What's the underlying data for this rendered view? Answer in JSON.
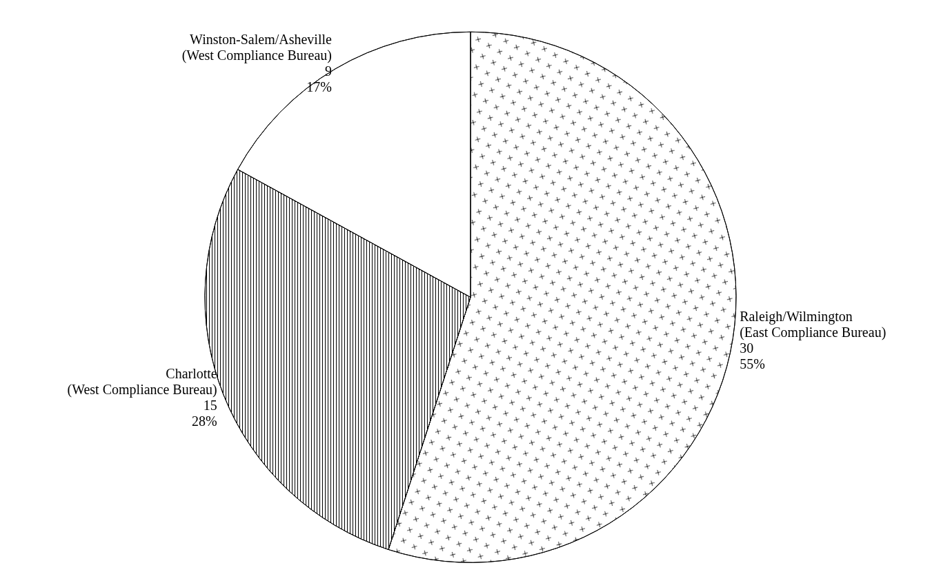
{
  "chart_data": {
    "type": "pie",
    "categories": [
      "Raleigh/Wilmington\n(East Compliance Bureau)",
      "Charlotte\n(West Compliance Bureau)",
      "Winston-Salem/Asheville\n(West Compliance Bureau)"
    ],
    "values": [
      55,
      28,
      17
    ],
    "colors": [
      "#ffffff",
      "#ffffff",
      "#ffffff"
    ],
    "value_labels": [
      "30\n55%",
      "15\n28%",
      "9\n17%"
    ],
    "legend": false
  }
}
